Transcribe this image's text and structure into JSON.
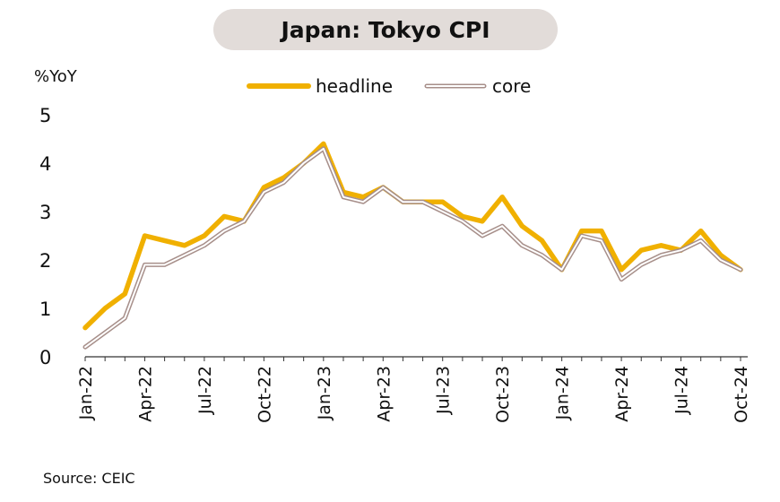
{
  "chart_data": {
    "type": "line",
    "title": "Japan: Tokyo CPI",
    "ylabel": "%YoY",
    "xlabel": "",
    "ylim": [
      0,
      5
    ],
    "yticks": [
      "0",
      "1",
      "2",
      "3",
      "4",
      "5"
    ],
    "xtick_labels": [
      "Jan-22",
      "Apr-22",
      "Jul-22",
      "Oct-22",
      "Jan-23",
      "Apr-23",
      "Jul-23",
      "Oct-23",
      "Jan-24",
      "Apr-24",
      "Jul-24",
      "Oct-24"
    ],
    "x": [
      "Jan-22",
      "Feb-22",
      "Mar-22",
      "Apr-22",
      "May-22",
      "Jun-22",
      "Jul-22",
      "Aug-22",
      "Sep-22",
      "Oct-22",
      "Nov-22",
      "Dec-22",
      "Jan-23",
      "Feb-23",
      "Mar-23",
      "Apr-23",
      "May-23",
      "Jun-23",
      "Jul-23",
      "Aug-23",
      "Sep-23",
      "Oct-23",
      "Nov-23",
      "Dec-23",
      "Jan-24",
      "Feb-24",
      "Mar-24",
      "Apr-24",
      "May-24",
      "Jun-24",
      "Jul-24",
      "Aug-24",
      "Sep-24",
      "Oct-24"
    ],
    "legend_position": "top",
    "grid": false,
    "series": [
      {
        "name": "headline",
        "color": "#f0b000",
        "values": [
          0.6,
          1.0,
          1.3,
          2.5,
          2.4,
          2.3,
          2.5,
          2.9,
          2.8,
          3.5,
          3.7,
          4.0,
          4.4,
          3.4,
          3.3,
          3.5,
          3.2,
          3.2,
          3.2,
          2.9,
          2.8,
          3.3,
          2.7,
          2.4,
          1.8,
          2.6,
          2.6,
          1.8,
          2.2,
          2.3,
          2.2,
          2.6,
          2.1,
          1.8
        ]
      },
      {
        "name": "core",
        "color": "#a78f8a",
        "values": [
          0.2,
          0.5,
          0.8,
          1.9,
          1.9,
          2.1,
          2.3,
          2.6,
          2.8,
          3.4,
          3.6,
          4.0,
          4.3,
          3.3,
          3.2,
          3.5,
          3.2,
          3.2,
          3.0,
          2.8,
          2.5,
          2.7,
          2.3,
          2.1,
          1.8,
          2.5,
          2.4,
          1.6,
          1.9,
          2.1,
          2.2,
          2.4,
          2.0,
          1.8
        ]
      }
    ]
  },
  "source": "Source: CEIC"
}
